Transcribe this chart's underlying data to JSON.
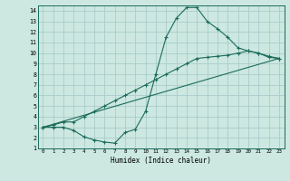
{
  "xlabel": "Humidex (Indice chaleur)",
  "bg_color": "#cce8e0",
  "grid_color": "#aacccc",
  "line_color": "#1a6b5a",
  "xlim": [
    -0.5,
    23.5
  ],
  "ylim": [
    1,
    14.5
  ],
  "xticks": [
    0,
    1,
    2,
    3,
    4,
    5,
    6,
    7,
    8,
    9,
    10,
    11,
    12,
    13,
    14,
    15,
    16,
    17,
    18,
    19,
    20,
    21,
    22,
    23
  ],
  "yticks": [
    1,
    2,
    3,
    4,
    5,
    6,
    7,
    8,
    9,
    10,
    11,
    12,
    13,
    14
  ],
  "curve1_x": [
    0,
    1,
    2,
    3,
    4,
    5,
    6,
    7,
    8,
    9,
    10,
    11,
    12,
    13,
    14,
    15,
    16,
    17,
    18,
    19,
    20,
    21,
    22,
    23
  ],
  "curve1_y": [
    3.0,
    3.0,
    3.0,
    2.7,
    2.1,
    1.8,
    1.6,
    1.5,
    2.5,
    2.8,
    4.5,
    8.0,
    11.5,
    13.3,
    14.3,
    14.3,
    13.0,
    12.3,
    11.5,
    10.5,
    10.2,
    10.0,
    9.6,
    9.5
  ],
  "curve2_x": [
    0,
    1,
    2,
    3,
    4,
    5,
    6,
    7,
    8,
    9,
    10,
    11,
    12,
    13,
    14,
    15,
    16,
    17,
    18,
    19,
    20,
    21,
    22,
    23
  ],
  "curve2_y": [
    3.0,
    3.2,
    3.5,
    3.5,
    4.0,
    4.5,
    5.0,
    5.5,
    6.0,
    6.5,
    7.0,
    7.5,
    8.0,
    8.5,
    9.0,
    9.5,
    9.6,
    9.7,
    9.8,
    10.0,
    10.2,
    10.0,
    9.7,
    9.5
  ],
  "curve3_x": [
    0,
    23
  ],
  "curve3_y": [
    3.0,
    9.5
  ]
}
